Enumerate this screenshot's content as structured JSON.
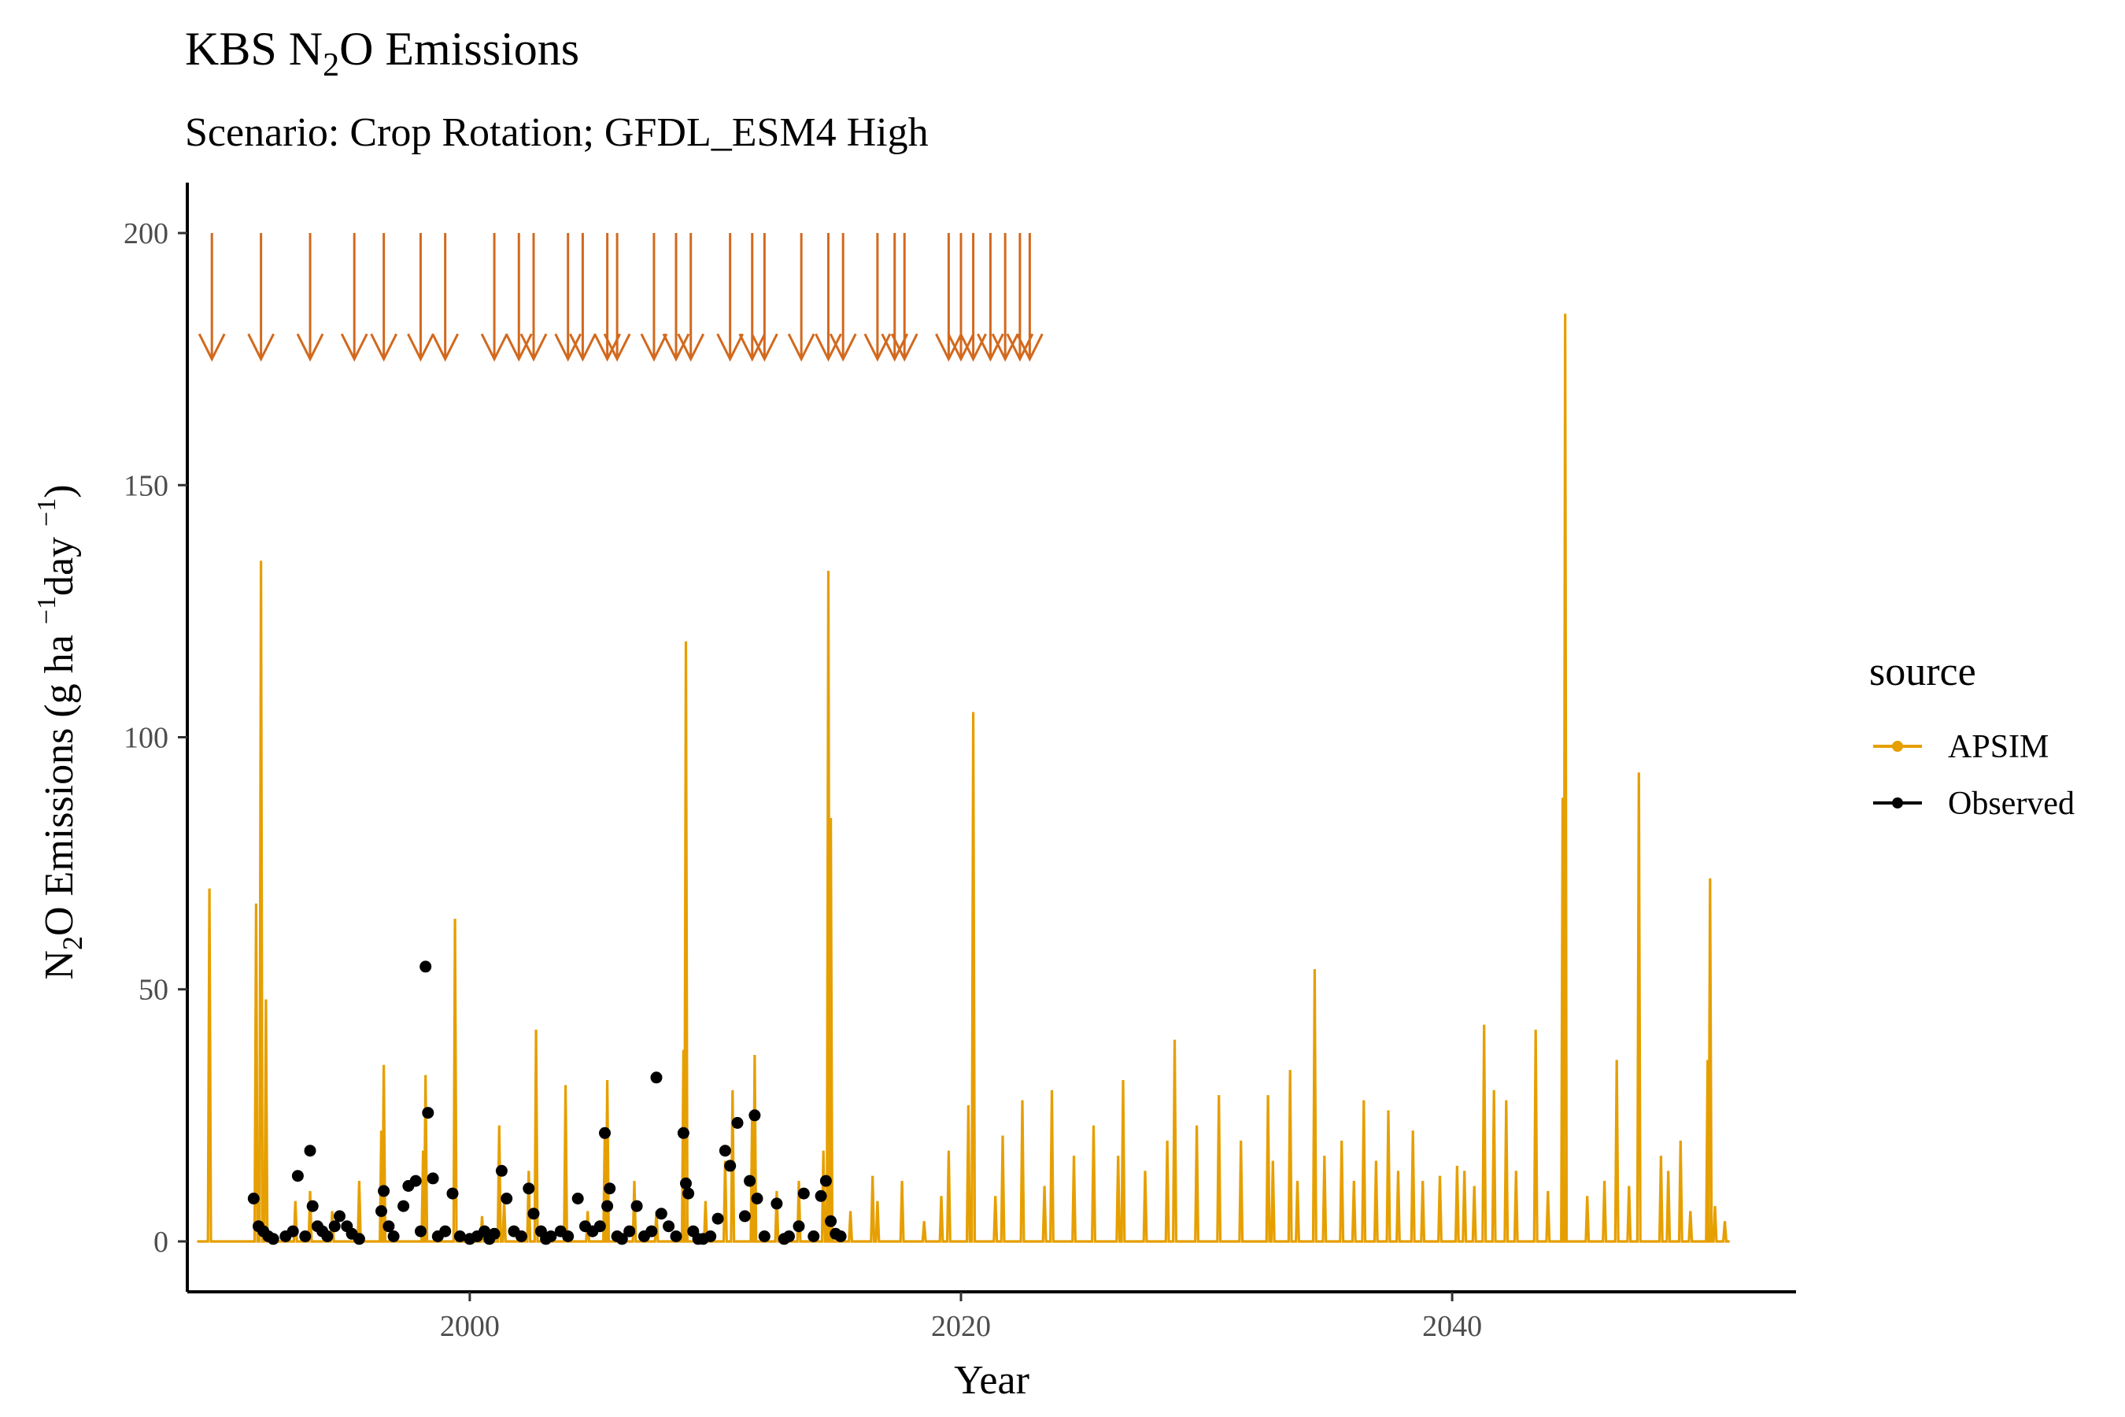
{
  "chart_data": {
    "type": "line",
    "title": "KBS N₂O Emissions",
    "title_parts": {
      "a": "KBS N",
      "sub": "2",
      "b": "O Emissions"
    },
    "subtitle": "Scenario: Crop Rotation; GFDL_ESM4 High",
    "xlabel": "Year",
    "ylabel": "N₂O Emissions (g ha⁻¹day⁻¹)",
    "ylabel_parts": {
      "a": "N",
      "sub": "2",
      "b": "O Emissions (g ha ",
      "sup1": "−1",
      "c": "day ",
      "sup2": "−1",
      "d": ")"
    },
    "xlim": [
      1988.5,
      2054
    ],
    "ylim": [
      -10,
      210
    ],
    "x_ticks": [
      2000,
      2020,
      2040
    ],
    "y_ticks": [
      0,
      50,
      100,
      150,
      200
    ],
    "grid": false,
    "legend": {
      "title": "source",
      "position": "right",
      "entries": [
        {
          "name": "APSIM",
          "color": "#E69F00"
        },
        {
          "name": "Observed",
          "color": "#000000"
        }
      ]
    },
    "series": [
      {
        "name": "APSIM",
        "kind": "line",
        "color": "#E69F00",
        "peaks": [
          [
            1989.4,
            70
          ],
          [
            1991.3,
            67
          ],
          [
            1991.5,
            135
          ],
          [
            1991.7,
            48
          ],
          [
            1992.9,
            8
          ],
          [
            1993.5,
            10
          ],
          [
            1994.4,
            6
          ],
          [
            1995.5,
            12
          ],
          [
            1996.5,
            35
          ],
          [
            1996.4,
            22
          ],
          [
            1998.2,
            33
          ],
          [
            1998.1,
            18
          ],
          [
            1999.4,
            64
          ],
          [
            2000.5,
            5
          ],
          [
            2001.2,
            23
          ],
          [
            2001.4,
            8
          ],
          [
            2002.4,
            14
          ],
          [
            2002.7,
            42
          ],
          [
            2003.9,
            31
          ],
          [
            2004.8,
            6
          ],
          [
            2005.6,
            32
          ],
          [
            2005.5,
            22
          ],
          [
            2006.7,
            12
          ],
          [
            2007.6,
            6
          ],
          [
            2008.7,
            38
          ],
          [
            2008.8,
            119
          ],
          [
            2009.6,
            8
          ],
          [
            2010.4,
            16
          ],
          [
            2010.7,
            30
          ],
          [
            2011.5,
            25
          ],
          [
            2011.6,
            37
          ],
          [
            2012.5,
            10
          ],
          [
            2013.4,
            12
          ],
          [
            2014.4,
            18
          ],
          [
            2014.6,
            133
          ],
          [
            2014.7,
            84
          ],
          [
            2015.5,
            6
          ],
          [
            2016.4,
            13
          ],
          [
            2016.6,
            8
          ],
          [
            2017.6,
            12
          ],
          [
            2018.5,
            4
          ],
          [
            2019.2,
            9
          ],
          [
            2019.5,
            18
          ],
          [
            2020.3,
            27
          ],
          [
            2020.5,
            105
          ],
          [
            2021.4,
            9
          ],
          [
            2021.7,
            21
          ],
          [
            2022.5,
            28
          ],
          [
            2023.4,
            11
          ],
          [
            2023.7,
            30
          ],
          [
            2024.6,
            17
          ],
          [
            2025.4,
            23
          ],
          [
            2026.4,
            17
          ],
          [
            2026.6,
            32
          ],
          [
            2027.5,
            14
          ],
          [
            2028.4,
            20
          ],
          [
            2028.7,
            40
          ],
          [
            2029.6,
            23
          ],
          [
            2030.5,
            29
          ],
          [
            2031.4,
            20
          ],
          [
            2032.5,
            29
          ],
          [
            2032.7,
            16
          ],
          [
            2033.4,
            34
          ],
          [
            2033.7,
            12
          ],
          [
            2034.4,
            54
          ],
          [
            2034.8,
            17
          ],
          [
            2035.5,
            20
          ],
          [
            2036.0,
            12
          ],
          [
            2036.4,
            28
          ],
          [
            2036.9,
            16
          ],
          [
            2037.4,
            26
          ],
          [
            2037.8,
            14
          ],
          [
            2038.4,
            22
          ],
          [
            2038.8,
            12
          ],
          [
            2039.5,
            13
          ],
          [
            2040.2,
            15
          ],
          [
            2040.5,
            14
          ],
          [
            2040.9,
            11
          ],
          [
            2041.3,
            43
          ],
          [
            2041.7,
            30
          ],
          [
            2042.2,
            28
          ],
          [
            2042.6,
            14
          ],
          [
            2043.4,
            42
          ],
          [
            2043.9,
            10
          ],
          [
            2044.5,
            88
          ],
          [
            2044.6,
            184
          ],
          [
            2045.5,
            9
          ],
          [
            2046.2,
            12
          ],
          [
            2046.7,
            36
          ],
          [
            2047.2,
            11
          ],
          [
            2047.6,
            93
          ],
          [
            2048.5,
            17
          ],
          [
            2048.8,
            14
          ],
          [
            2049.3,
            20
          ],
          [
            2049.7,
            6
          ],
          [
            2050.4,
            36
          ],
          [
            2050.5,
            72
          ],
          [
            2050.7,
            7
          ],
          [
            2051.1,
            4
          ]
        ]
      },
      {
        "name": "Observed",
        "kind": "points",
        "color": "#000000",
        "points": [
          [
            1991.2,
            8.5
          ],
          [
            1991.4,
            3
          ],
          [
            1991.6,
            2
          ],
          [
            1991.8,
            1
          ],
          [
            1992.0,
            0.5
          ],
          [
            1992.5,
            1
          ],
          [
            1992.8,
            2
          ],
          [
            1993.0,
            13
          ],
          [
            1993.3,
            1
          ],
          [
            1993.5,
            18
          ],
          [
            1993.6,
            7
          ],
          [
            1993.8,
            3
          ],
          [
            1994.0,
            2
          ],
          [
            1994.2,
            1
          ],
          [
            1994.5,
            3
          ],
          [
            1994.7,
            5
          ],
          [
            1995.0,
            3
          ],
          [
            1995.2,
            1.5
          ],
          [
            1996.4,
            6
          ],
          [
            1996.5,
            10
          ],
          [
            1996.7,
            3
          ],
          [
            1996.9,
            1
          ],
          [
            1997.3,
            7
          ],
          [
            1997.5,
            11
          ],
          [
            1997.8,
            12
          ],
          [
            1998.0,
            2
          ],
          [
            1998.2,
            54.5
          ],
          [
            1998.3,
            25.5
          ],
          [
            1998.5,
            12.5
          ],
          [
            1998.7,
            1
          ],
          [
            1999.0,
            2
          ],
          [
            1999.3,
            9.5
          ],
          [
            1999.6,
            1
          ],
          [
            2000.0,
            0.5
          ],
          [
            2000.3,
            1
          ],
          [
            2000.6,
            2
          ],
          [
            2001.0,
            1.5
          ],
          [
            2001.3,
            14
          ],
          [
            2001.5,
            8.5
          ],
          [
            2001.8,
            2
          ],
          [
            2002.1,
            1
          ],
          [
            2002.4,
            10.5
          ],
          [
            2002.6,
            5.5
          ],
          [
            2002.9,
            2
          ],
          [
            2003.3,
            1
          ],
          [
            2003.7,
            2
          ],
          [
            2004.0,
            1
          ],
          [
            2004.4,
            8.5
          ],
          [
            2004.7,
            3
          ],
          [
            2005.0,
            2
          ],
          [
            2005.3,
            3
          ],
          [
            2005.5,
            21.5
          ],
          [
            2005.6,
            7
          ],
          [
            2005.7,
            10.5
          ],
          [
            2006.0,
            1
          ],
          [
            2006.5,
            2
          ],
          [
            2006.8,
            7
          ],
          [
            2007.1,
            1
          ],
          [
            2007.4,
            2
          ],
          [
            2007.6,
            32.5
          ],
          [
            2007.8,
            5.5
          ],
          [
            2008.1,
            3
          ],
          [
            2008.4,
            1
          ],
          [
            2008.7,
            21.5
          ],
          [
            2008.8,
            11.5
          ],
          [
            2008.9,
            9.5
          ],
          [
            2009.1,
            2
          ],
          [
            2009.5,
            0.5
          ],
          [
            2009.8,
            1
          ],
          [
            2010.1,
            4.5
          ],
          [
            2010.4,
            18
          ],
          [
            2010.6,
            15
          ],
          [
            2010.9,
            23.5
          ],
          [
            2011.2,
            5
          ],
          [
            2011.4,
            12
          ],
          [
            2011.6,
            25
          ],
          [
            2011.7,
            8.5
          ],
          [
            2012.0,
            1
          ],
          [
            2012.5,
            7.5
          ],
          [
            2013.0,
            1
          ],
          [
            2013.4,
            3
          ],
          [
            2013.6,
            9.5
          ],
          [
            2014.0,
            1
          ],
          [
            2014.3,
            9
          ],
          [
            2014.5,
            12
          ],
          [
            2014.7,
            4
          ],
          [
            2014.9,
            1.5
          ],
          [
            2015.1,
            1
          ],
          [
            1995.5,
            0.5
          ],
          [
            2000.8,
            0.5
          ],
          [
            2003.1,
            0.5
          ],
          [
            2006.2,
            0.5
          ],
          [
            2009.3,
            0.5
          ],
          [
            2012.8,
            0.5
          ]
        ]
      }
    ],
    "management_arrows": {
      "color": "#D2691E",
      "y_top": 200,
      "y_bottom": 175,
      "x": [
        1989.5,
        1991.5,
        1993.5,
        1995.3,
        1996.5,
        1998.0,
        1999.0,
        2001.0,
        2002.0,
        2002.6,
        2004.0,
        2004.6,
        2005.6,
        2006.0,
        2007.5,
        2008.4,
        2009.0,
        2010.6,
        2011.5,
        2012.0,
        2013.5,
        2014.6,
        2015.2,
        2016.6,
        2017.3,
        2017.7,
        2019.5,
        2020.0,
        2020.5,
        2021.2,
        2021.8,
        2022.4,
        2022.8
      ]
    }
  }
}
